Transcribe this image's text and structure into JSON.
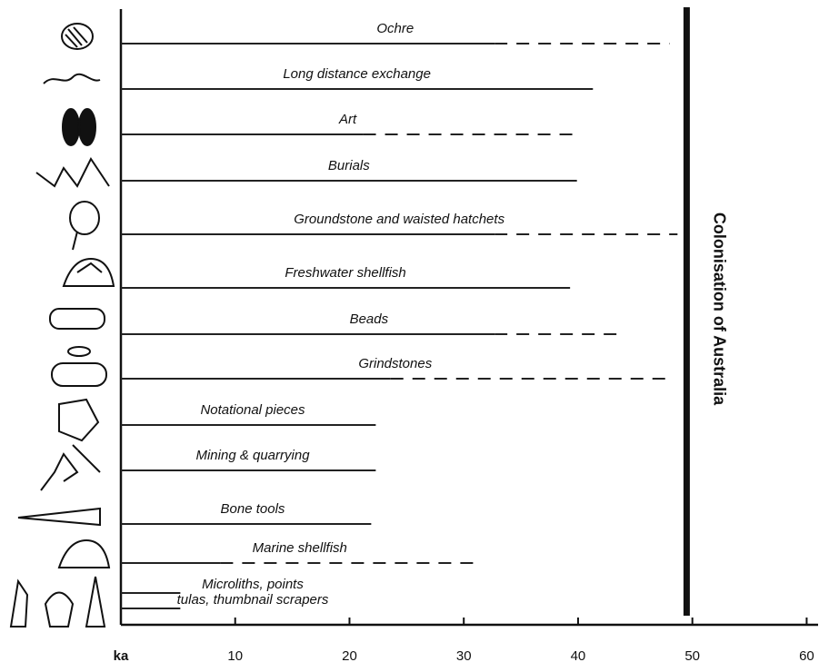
{
  "chart_data": {
    "type": "range",
    "categories": [
      "Ochre",
      "Long distance exchange",
      "Art",
      "Burials",
      "Groundstone and waisted hatchets",
      "Freshwater shellfish",
      "Beads",
      "Grindstones",
      "Notational pieces",
      "Mining & quarrying",
      "Bone tools",
      "Marine shellfish",
      "Microliths, points",
      "tulas, thumbnail scrapers"
    ],
    "values": [
      32.7,
      41.3,
      21.2,
      39.9,
      32.7,
      39.3,
      32.7,
      23.6,
      22.3,
      22.3,
      21.9,
      8.7,
      5.2,
      5.2
    ],
    "dashed_values": [
      48.0,
      null,
      39.7,
      null,
      48.7,
      null,
      43.4,
      48.0,
      null,
      null,
      null,
      31.3,
      null,
      null
    ],
    "marker": {
      "value": 49.5,
      "label": "Colonisation of Australia"
    },
    "xlabel": "ka",
    "xlim": [
      0,
      61
    ],
    "xticks": [
      10,
      20,
      30,
      40,
      50,
      60
    ],
    "color": "#222222"
  }
}
